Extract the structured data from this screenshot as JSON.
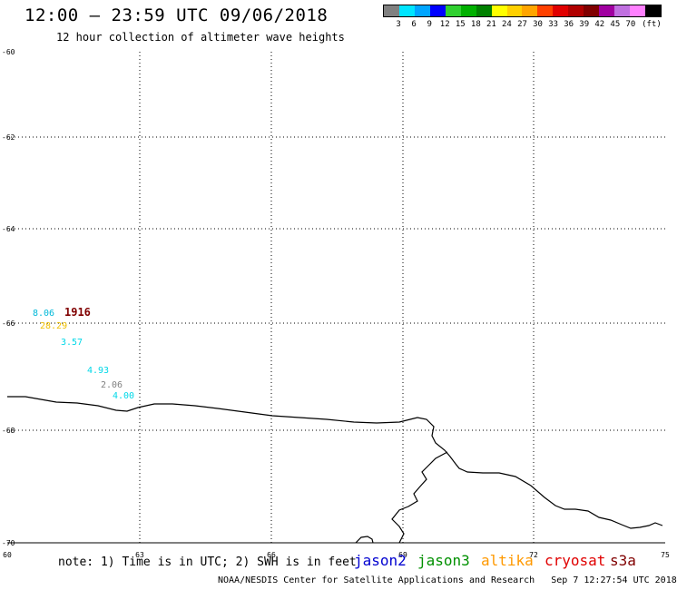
{
  "header": {
    "title": "12:00 – 23:59 UTC 09/06/2018",
    "subtitle": "12 hour collection of altimeter wave heights"
  },
  "color_scale": {
    "colors": [
      "#808080",
      "#00e5ff",
      "#00a5ff",
      "#0000ff",
      "#30d030",
      "#00b000",
      "#008000",
      "#ffff00",
      "#ffd000",
      "#ffa500",
      "#ff4000",
      "#e00000",
      "#b00000",
      "#800000",
      "#a000a0",
      "#c070e0",
      "#ff80ff",
      "#000000"
    ],
    "labels": [
      "3",
      "6",
      "9",
      "12",
      "15",
      "18",
      "21",
      "24",
      "27",
      "30",
      "33",
      "36",
      "39",
      "42",
      "45",
      "70",
      "(ft)"
    ]
  },
  "map": {
    "lat_labels": [
      "-60",
      "-62",
      "-64",
      "-66",
      "-68",
      "-70"
    ],
    "lon_labels": [
      "60",
      "63",
      "66",
      "69",
      "72",
      "75"
    ],
    "coast_color": "#000000",
    "grid_style": "dotted",
    "observations": [
      {
        "label": "8.06",
        "color": "#00b8d8"
      },
      {
        "label": "1916",
        "color": "#800000"
      },
      {
        "label": "28.29",
        "color": "#f0c000"
      },
      {
        "label": "3.57",
        "color": "#00d8e8"
      },
      {
        "label": "4.93",
        "color": "#00d8e8"
      },
      {
        "label": "2.06",
        "color": "#808080"
      },
      {
        "label": "4.00",
        "color": "#00d8e8"
      }
    ]
  },
  "footer": {
    "note": "note: 1) Time is in UTC; 2) SWH is in feet",
    "satellites": [
      {
        "name": "jason2",
        "color": "#0000d0"
      },
      {
        "name": "jason3",
        "color": "#009000"
      },
      {
        "name": "altika",
        "color": "#ff9900"
      },
      {
        "name": "cryosat",
        "color": "#e00000"
      },
      {
        "name": "s3a",
        "color": "#800000"
      }
    ],
    "credit": "NOAA/NESDIS Center for Satellite Applications and Research",
    "timestamp": "Sep  7 12:27:54 UTC 2018"
  }
}
